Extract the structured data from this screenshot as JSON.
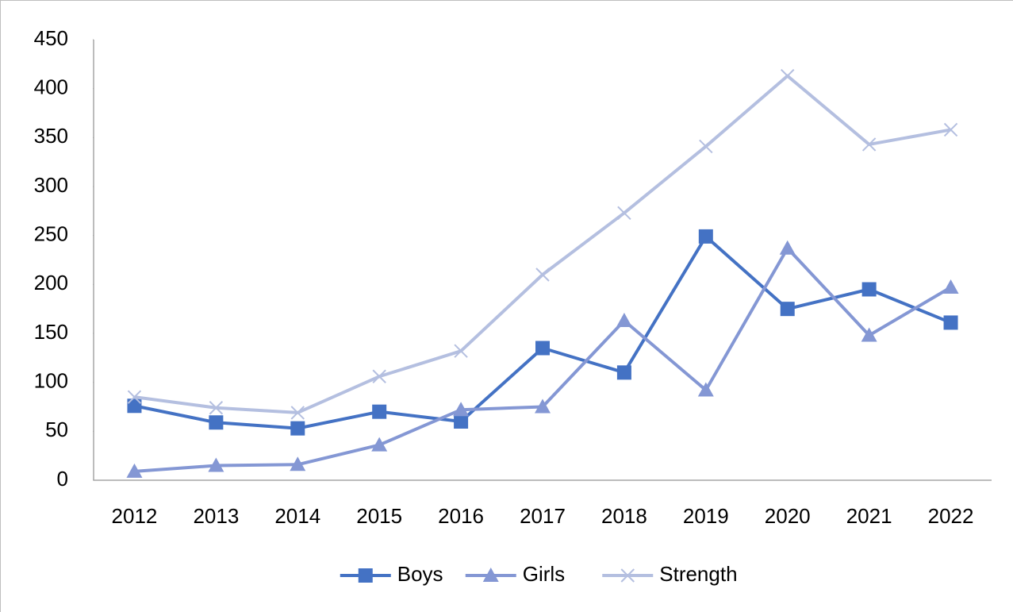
{
  "chart_data": {
    "type": "line",
    "categories": [
      "2012",
      "2013",
      "2014",
      "2015",
      "2016",
      "2017",
      "2018",
      "2019",
      "2020",
      "2021",
      "2022"
    ],
    "series": [
      {
        "name": "Boys",
        "color": "#4472c4",
        "marker": "square",
        "values": [
          76,
          59,
          53,
          70,
          60,
          135,
          110,
          249,
          175,
          195,
          161
        ]
      },
      {
        "name": "Girls",
        "color": "#8497d4",
        "marker": "triangle",
        "values": [
          9,
          15,
          16,
          36,
          72,
          75,
          163,
          92,
          237,
          148,
          197
        ]
      },
      {
        "name": "Strength",
        "color": "#b4bfe0",
        "marker": "x",
        "values": [
          85,
          74,
          69,
          106,
          132,
          210,
          273,
          341,
          413,
          343,
          358
        ]
      }
    ],
    "ylim": [
      0,
      450
    ],
    "yticks": [
      0,
      50,
      100,
      150,
      200,
      250,
      300,
      350,
      400,
      450
    ],
    "grid": false,
    "legend": "bottom"
  }
}
